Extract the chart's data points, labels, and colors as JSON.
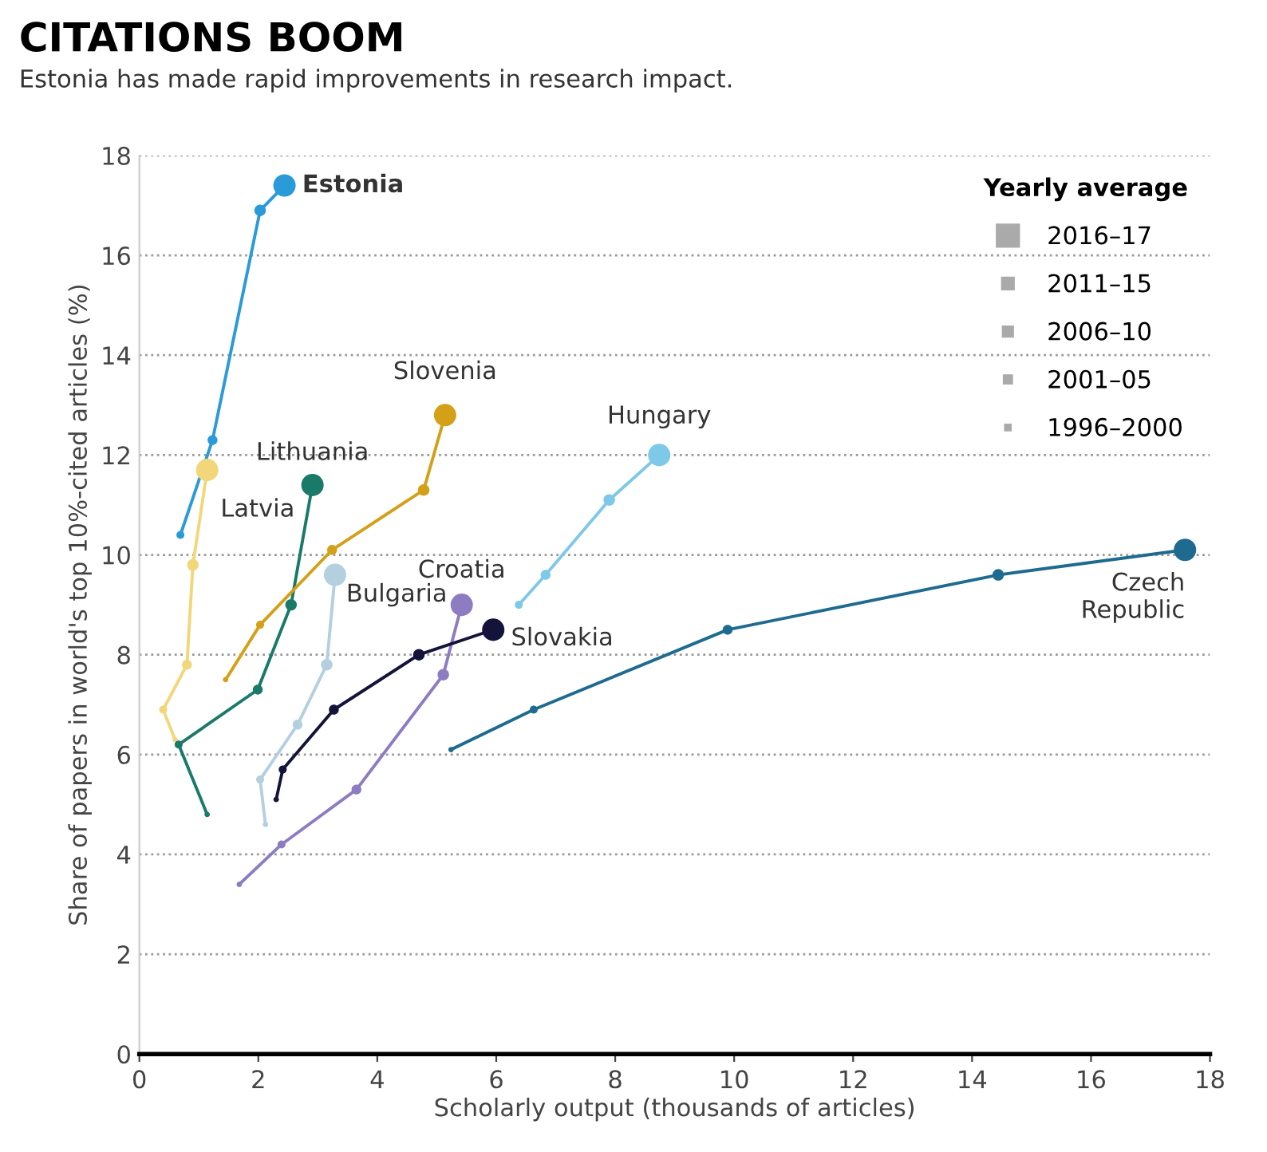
{
  "chart_data": {
    "type": "line",
    "title": "CITATIONS BOOM",
    "subtitle": "Estonia has made rapid improvements in research impact.",
    "xlabel": "Scholarly output (thousands of articles)",
    "ylabel": "Share of papers in world's top 10%-cited articles (%)",
    "legend_title": "Yearly average",
    "legend": "top right",
    "annotations": [
      "1996–2000",
      "2001–05",
      "2006–10",
      "2011–15",
      "2016–17"
    ],
    "xlim": [
      0,
      18
    ],
    "xticks": [
      0,
      2,
      4,
      6,
      8,
      10,
      12,
      14,
      16,
      18
    ],
    "ylim": [
      0,
      18
    ],
    "yticks": [
      0,
      2,
      4,
      6,
      8,
      10,
      12,
      14,
      16,
      18
    ],
    "grid": "y",
    "marker": "circle",
    "line_style": "solid",
    "series": [
      {
        "name": "Estonia",
        "color": "#2a9ad8",
        "x": [
          0.69,
          1.23,
          2.03,
          2.44
        ],
        "values": [
          10.4,
          12.3,
          16.9,
          17.4
        ]
      },
      {
        "name": "Latvia",
        "color": "#f2d77a",
        "x": [
          0.6,
          0.4,
          0.8,
          0.9,
          1.14
        ],
        "values": [
          6.3,
          6.9,
          7.8,
          9.8,
          11.7
        ]
      },
      {
        "name": "Lithuania",
        "color": "#1a7a6a",
        "x": [
          1.14,
          0.66,
          1.99,
          2.55,
          2.91
        ],
        "values": [
          4.8,
          6.2,
          7.3,
          9.0,
          11.4
        ]
      },
      {
        "name": "Slovenia",
        "color": "#d4a017",
        "x": [
          1.45,
          2.03,
          3.24,
          4.78,
          5.14
        ],
        "values": [
          7.5,
          8.6,
          10.1,
          11.3,
          12.8
        ]
      },
      {
        "name": "Bulgaria",
        "color": "#b4cfe0",
        "x": [
          2.12,
          2.03,
          2.66,
          3.15,
          3.29
        ],
        "values": [
          4.6,
          5.5,
          6.6,
          7.8,
          9.6
        ]
      },
      {
        "name": "Croatia",
        "color": "#8e7cc3",
        "x": [
          1.68,
          2.39,
          3.65,
          5.11,
          5.42
        ],
        "values": [
          3.4,
          4.2,
          5.3,
          7.6,
          9.0
        ]
      },
      {
        "name": "Slovakia",
        "color": "#14143a",
        "x": [
          2.3,
          2.41,
          3.27,
          4.7,
          5.95
        ],
        "values": [
          5.1,
          5.7,
          6.9,
          8.0,
          8.5
        ]
      },
      {
        "name": "Hungary",
        "color": "#7ec8e8",
        "x": [
          6.38,
          6.83,
          7.9,
          8.74
        ],
        "values": [
          9.0,
          9.6,
          11.1,
          12.0
        ]
      },
      {
        "name": "Czech\nRepublic",
        "color": "#1e6b8f",
        "x": [
          5.24,
          6.63,
          9.89,
          14.44,
          17.58
        ],
        "values": [
          6.1,
          6.9,
          8.5,
          9.6,
          10.1
        ]
      }
    ]
  }
}
